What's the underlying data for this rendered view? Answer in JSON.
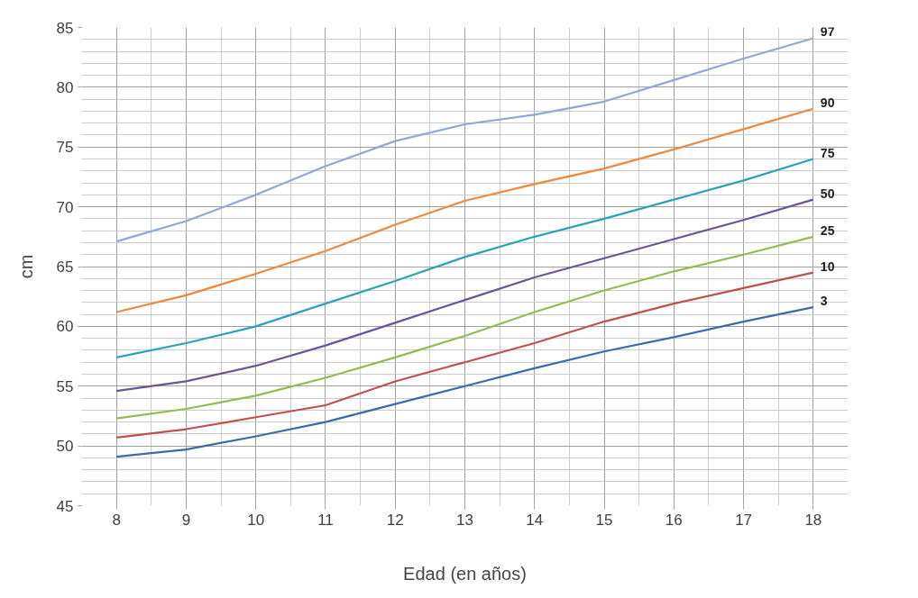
{
  "chart_data": {
    "type": "line",
    "xlabel": "Edad (en años)",
    "ylabel": "cm",
    "x": [
      8,
      9,
      10,
      11,
      12,
      13,
      14,
      15,
      16,
      17,
      18
    ],
    "xlim": [
      7.5,
      18.5
    ],
    "xticks": [
      8,
      9,
      10,
      11,
      12,
      13,
      14,
      15,
      16,
      17,
      18
    ],
    "ylim": [
      45,
      85
    ],
    "yticks": [
      45,
      50,
      55,
      60,
      65,
      70,
      75,
      80,
      85
    ],
    "grid": true,
    "legend": false,
    "marker": "none",
    "line_style": "solid",
    "series": [
      {
        "name": "97",
        "color": "#8fa8d8",
        "values": [
          67.1,
          68.8,
          71,
          73.4,
          75.5,
          76.9,
          77.7,
          78.8,
          80.6,
          82.4,
          84.1
        ]
      },
      {
        "name": "90",
        "color": "#f0883a",
        "values": [
          61.2,
          62.6,
          64.4,
          66.3,
          68.5,
          70.5,
          71.9,
          73.2,
          74.8,
          76.5,
          78.2
        ]
      },
      {
        "name": "75",
        "color": "#29a3b8",
        "values": [
          57.4,
          58.6,
          60,
          61.9,
          63.8,
          65.8,
          67.5,
          69,
          70.6,
          72.2,
          74
        ]
      },
      {
        "name": "50",
        "color": "#6b5499",
        "values": [
          54.6,
          55.4,
          56.7,
          58.4,
          60.3,
          62.2,
          64.1,
          65.7,
          67.3,
          68.9,
          70.6
        ]
      },
      {
        "name": "25",
        "color": "#92bb50",
        "values": [
          52.3,
          53.1,
          54.2,
          55.7,
          57.4,
          59.2,
          61.2,
          63,
          64.6,
          66,
          67.5
        ]
      },
      {
        "name": "10",
        "color": "#c0504d",
        "values": [
          50.7,
          51.4,
          52.4,
          53.4,
          55.4,
          57,
          58.6,
          60.4,
          61.9,
          63.2,
          64.5
        ]
      },
      {
        "name": "3",
        "color": "#3d6aa8",
        "values": [
          49.1,
          49.7,
          50.8,
          52,
          53.5,
          55,
          56.5,
          57.9,
          59.1,
          60.4,
          61.6
        ]
      }
    ]
  }
}
